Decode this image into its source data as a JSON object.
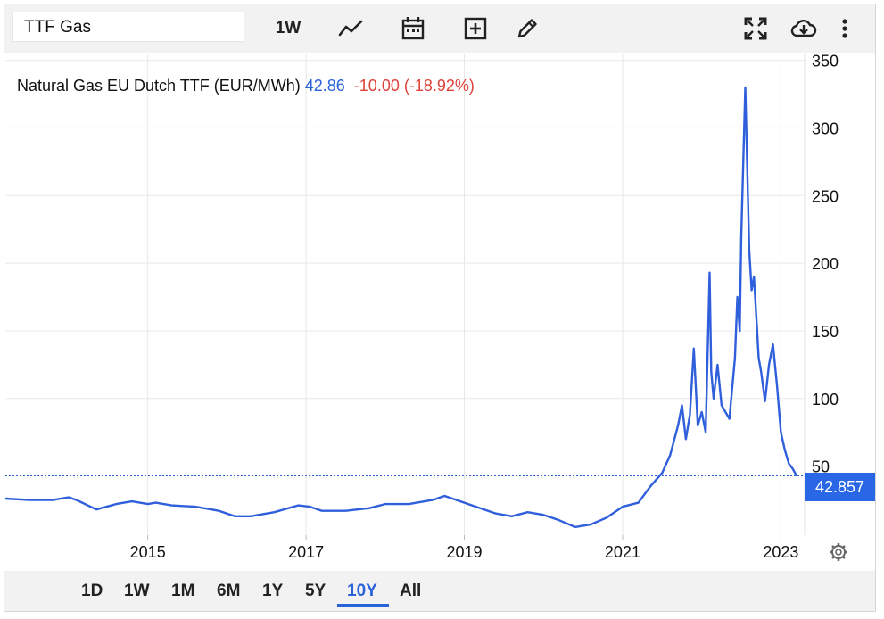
{
  "toolbar": {
    "search_value": "TTF Gas",
    "interval_label": "1W",
    "icons": [
      "line-chart-icon",
      "calendar-icon",
      "add-indicator-icon",
      "draw-pencil-icon",
      "fullscreen-icon",
      "download-cloud-icon",
      "more-vert-icon"
    ]
  },
  "legend": {
    "name": "Natural Gas EU Dutch TTF (EUR/MWh)",
    "last": "42.86",
    "change": "-10.00 (-18.92%)"
  },
  "price_tag": "42.857",
  "bottom_bar": {
    "ranges": [
      "1D",
      "1W",
      "1M",
      "6M",
      "1Y",
      "5Y",
      "10Y",
      "All"
    ],
    "active": "10Y"
  },
  "colors": {
    "line": "#2f5fdb",
    "accent": "#2962d9",
    "negative": "#e0413a",
    "grid": "#e8e8e8"
  },
  "chart_data": {
    "type": "line",
    "title": "Natural Gas EU Dutch TTF (EUR/MWh)",
    "xlabel": "",
    "ylabel": "",
    "x_ticks": [
      "2015",
      "2017",
      "2019",
      "2021",
      "2023"
    ],
    "y_ticks": [
      50,
      100,
      150,
      200,
      250,
      300,
      350
    ],
    "xlim": [
      2013.2,
      2023.3
    ],
    "ylim": [
      -1,
      355
    ],
    "grid": true,
    "last_value": 42.857,
    "series": [
      {
        "x": [
          2013.2,
          2013.5,
          2013.8,
          2014.0,
          2014.1,
          2014.35,
          2014.6,
          2014.8,
          2015.0,
          2015.1,
          2015.3,
          2015.6,
          2015.9,
          2016.1,
          2016.3,
          2016.6,
          2016.9,
          2017.05,
          2017.2,
          2017.5,
          2017.8,
          2018.0,
          2018.3,
          2018.6,
          2018.75,
          2019.0,
          2019.2,
          2019.4,
          2019.6,
          2019.8,
          2020.0,
          2020.2,
          2020.4,
          2020.6,
          2020.8,
          2021.0,
          2021.2,
          2021.35,
          2021.5,
          2021.6,
          2021.7,
          2021.75,
          2021.8,
          2021.85,
          2021.9,
          2021.95,
          2022.0,
          2022.05,
          2022.1,
          2022.12,
          2022.15,
          2022.2,
          2022.25,
          2022.3,
          2022.35,
          2022.42,
          2022.45,
          2022.48,
          2022.5,
          2022.55,
          2022.6,
          2022.63,
          2022.66,
          2022.7,
          2022.72,
          2022.75,
          2022.8,
          2022.85,
          2022.9,
          2022.95,
          2023.0,
          2023.05,
          2023.1,
          2023.15,
          2023.2
        ],
        "y": [
          26,
          25,
          25,
          27,
          25,
          18,
          22,
          24,
          22,
          23,
          21,
          20,
          17,
          13,
          13,
          16,
          21,
          20,
          17,
          17,
          19,
          22,
          22,
          25,
          28,
          23,
          19,
          15,
          13,
          16,
          14,
          10,
          5,
          7,
          12,
          20,
          23,
          35,
          45,
          58,
          80,
          95,
          70,
          88,
          137,
          80,
          90,
          75,
          193,
          120,
          100,
          125,
          95,
          90,
          85,
          130,
          175,
          150,
          220,
          330,
          210,
          180,
          190,
          150,
          130,
          120,
          98,
          125,
          140,
          110,
          75,
          62,
          52,
          48,
          42.86
        ]
      }
    ]
  }
}
